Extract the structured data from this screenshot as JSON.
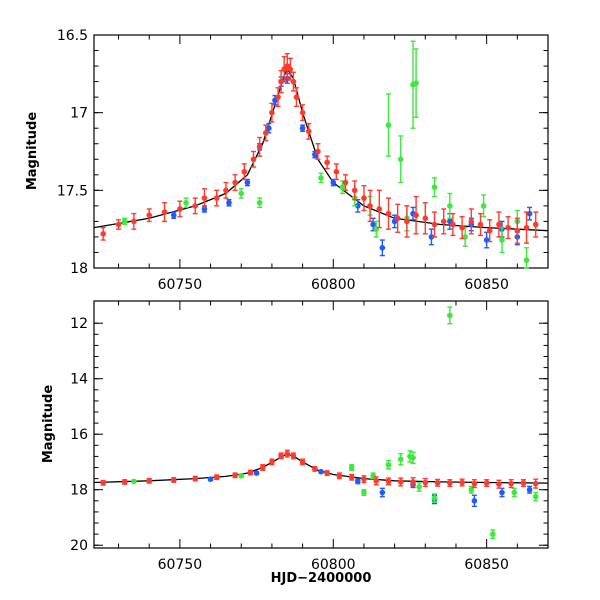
{
  "colors": {
    "blue": "#1f5bff",
    "green": "#3ee83e",
    "red": "#ff3b2f",
    "model": "#000000",
    "axes": "#000000"
  },
  "chart_data": [
    {
      "type": "scatter",
      "panel": "top",
      "xlabel": "",
      "ylabel": "Magnitude",
      "xlim": [
        60722,
        60870
      ],
      "ylim": [
        18.0,
        16.5
      ],
      "y_inverted": true,
      "xticks": [
        60750,
        60800,
        60850
      ],
      "xtick_labels": [
        "60750",
        "60800",
        "60850"
      ],
      "yticks": [
        16.5,
        17.0,
        17.5,
        18.0
      ],
      "ytick_labels": [
        "16.5",
        "17",
        "17.5",
        "18"
      ],
      "series": [
        {
          "color": "blue",
          "x": [
            60748,
            60758,
            60766,
            60772,
            60776,
            60779,
            60781,
            60783,
            60785,
            60790,
            60794,
            60800,
            60808,
            60813,
            60816,
            60820,
            60826,
            60832,
            60838,
            60845,
            60850,
            60855,
            60860,
            60864
          ],
          "y": [
            17.66,
            17.62,
            17.58,
            17.45,
            17.22,
            17.1,
            16.92,
            16.8,
            16.78,
            17.1,
            17.27,
            17.45,
            17.6,
            17.72,
            17.87,
            17.7,
            17.65,
            17.8,
            17.7,
            17.72,
            17.82,
            17.75,
            17.8,
            17.65
          ],
          "yerr": [
            0.02,
            0.02,
            0.02,
            0.02,
            0.02,
            0.03,
            0.03,
            0.03,
            0.03,
            0.02,
            0.02,
            0.02,
            0.04,
            0.04,
            0.05,
            0.04,
            0.04,
            0.05,
            0.05,
            0.04,
            0.05,
            0.05,
            0.05,
            0.04
          ]
        },
        {
          "color": "green",
          "x": [
            60732,
            60752,
            60770,
            60776,
            60796,
            60803,
            60807,
            60812,
            60814,
            60818,
            60822,
            60824,
            60826,
            60827,
            60833,
            60838,
            60843,
            60849,
            60855,
            60860,
            60863
          ],
          "y": [
            17.7,
            17.58,
            17.52,
            17.58,
            17.42,
            17.48,
            17.55,
            17.6,
            17.75,
            17.08,
            17.3,
            17.68,
            16.82,
            16.81,
            17.48,
            17.6,
            17.8,
            17.6,
            17.82,
            17.7,
            17.95
          ],
          "yerr": [
            0.02,
            0.03,
            0.03,
            0.03,
            0.03,
            0.04,
            0.05,
            0.06,
            0.05,
            0.2,
            0.15,
            0.08,
            0.28,
            0.22,
            0.06,
            0.08,
            0.06,
            0.07,
            0.08,
            0.07,
            0.08
          ]
        },
        {
          "color": "red",
          "x": [
            60725,
            60730,
            60735,
            60740,
            60745,
            60750,
            60755,
            60758,
            60762,
            60765,
            60768,
            60771,
            60774,
            60776,
            60778,
            60780,
            60782,
            60783,
            60784,
            60785,
            60786,
            60787,
            60788,
            60790,
            60792,
            60795,
            60798,
            60801,
            60804,
            60807,
            60810,
            60812,
            60815,
            60818,
            60821,
            60824,
            60827,
            60830,
            60833,
            60836,
            60839,
            60842,
            60845,
            60848,
            60851,
            60854,
            60857,
            60860,
            60863,
            60866
          ],
          "y": [
            17.78,
            17.72,
            17.7,
            17.66,
            17.64,
            17.62,
            17.6,
            17.55,
            17.55,
            17.5,
            17.45,
            17.38,
            17.3,
            17.22,
            17.13,
            17.0,
            16.9,
            16.8,
            16.72,
            16.7,
            16.72,
            16.8,
            16.9,
            17.0,
            17.12,
            17.25,
            17.32,
            17.38,
            17.45,
            17.5,
            17.55,
            17.6,
            17.62,
            17.65,
            17.68,
            17.7,
            17.66,
            17.68,
            17.72,
            17.7,
            17.72,
            17.74,
            17.7,
            17.72,
            17.76,
            17.72,
            17.74,
            17.76,
            17.74,
            17.72
          ],
          "yerr": [
            0.04,
            0.03,
            0.05,
            0.04,
            0.06,
            0.05,
            0.05,
            0.06,
            0.05,
            0.05,
            0.05,
            0.05,
            0.05,
            0.06,
            0.05,
            0.06,
            0.06,
            0.07,
            0.08,
            0.08,
            0.07,
            0.06,
            0.06,
            0.05,
            0.05,
            0.05,
            0.04,
            0.05,
            0.05,
            0.06,
            0.08,
            0.1,
            0.12,
            0.1,
            0.09,
            0.1,
            0.12,
            0.1,
            0.08,
            0.08,
            0.07,
            0.07,
            0.08,
            0.07,
            0.07,
            0.08,
            0.07,
            0.08,
            0.1,
            0.08
          ]
        },
        {
          "color": "model",
          "line": true,
          "x": [
            60722,
            60740,
            60755,
            60765,
            60772,
            60777,
            60781,
            60784,
            60785,
            60787,
            60790,
            60795,
            60800,
            60810,
            60820,
            60835,
            60850,
            60870
          ],
          "y": [
            17.74,
            17.68,
            17.6,
            17.52,
            17.4,
            17.2,
            16.95,
            16.76,
            16.72,
            16.78,
            17.0,
            17.3,
            17.45,
            17.6,
            17.68,
            17.72,
            17.74,
            17.76
          ]
        }
      ]
    },
    {
      "type": "scatter",
      "panel": "bottom",
      "xlabel": "HJD−2400000",
      "ylabel": "Magnitude",
      "xlim": [
        60722,
        60870
      ],
      "ylim": [
        20.1,
        11.2
      ],
      "y_inverted": true,
      "xticks": [
        60750,
        60800,
        60850
      ],
      "xtick_labels": [
        "60750",
        "60800",
        "60850"
      ],
      "yticks": [
        12,
        14,
        16,
        18,
        20
      ],
      "ytick_labels": [
        "12",
        "14",
        "16",
        "18",
        "20"
      ],
      "series": [
        {
          "color": "blue",
          "x": [
            60760,
            60775,
            60783,
            60796,
            60808,
            60816,
            60826,
            60833,
            60846,
            60855,
            60864
          ],
          "y": [
            17.62,
            17.4,
            16.78,
            17.35,
            17.7,
            18.1,
            17.82,
            18.35,
            18.4,
            18.1,
            18.0
          ],
          "yerr": [
            0.05,
            0.05,
            0.05,
            0.05,
            0.08,
            0.15,
            0.1,
            0.15,
            0.2,
            0.15,
            0.12
          ]
        },
        {
          "color": "green",
          "x": [
            60735,
            60770,
            60790,
            60806,
            60810,
            60813,
            60818,
            60822,
            60825,
            60826,
            60828,
            60833,
            60838,
            60845,
            60852,
            60859,
            60866
          ],
          "y": [
            17.7,
            17.5,
            17.0,
            17.2,
            18.1,
            17.5,
            17.1,
            16.9,
            16.8,
            16.85,
            17.9,
            18.3,
            11.72,
            18.0,
            19.6,
            18.1,
            18.25
          ],
          "yerr": [
            0.05,
            0.05,
            0.05,
            0.1,
            0.1,
            0.1,
            0.15,
            0.2,
            0.2,
            0.2,
            0.15,
            0.15,
            0.3,
            0.12,
            0.15,
            0.15,
            0.15
          ]
        },
        {
          "color": "red",
          "x": [
            60725,
            60732,
            60740,
            60748,
            60755,
            60762,
            60768,
            60773,
            60777,
            60780,
            60783,
            60785,
            60787,
            60790,
            60794,
            60798,
            60802,
            60806,
            60810,
            60814,
            60818,
            60822,
            60826,
            60830,
            60834,
            60838,
            60842,
            60846,
            60850,
            60854,
            60858,
            60862,
            60866
          ],
          "y": [
            17.75,
            17.72,
            17.68,
            17.65,
            17.6,
            17.55,
            17.48,
            17.38,
            17.2,
            17.0,
            16.78,
            16.7,
            16.78,
            17.0,
            17.25,
            17.4,
            17.5,
            17.55,
            17.62,
            17.68,
            17.7,
            17.72,
            17.72,
            17.74,
            17.75,
            17.76,
            17.74,
            17.78,
            17.76,
            17.8,
            17.78,
            17.76,
            17.78
          ],
          "yerr": [
            0.08,
            0.08,
            0.08,
            0.08,
            0.08,
            0.08,
            0.08,
            0.08,
            0.1,
            0.1,
            0.1,
            0.12,
            0.1,
            0.1,
            0.08,
            0.08,
            0.1,
            0.1,
            0.12,
            0.14,
            0.12,
            0.14,
            0.15,
            0.14,
            0.12,
            0.12,
            0.12,
            0.14,
            0.12,
            0.14,
            0.14,
            0.12,
            0.16
          ]
        },
        {
          "color": "model",
          "line": true,
          "x": [
            60722,
            60740,
            60755,
            60765,
            60772,
            60777,
            60781,
            60784,
            60785,
            60787,
            60790,
            60795,
            60800,
            60810,
            60820,
            60835,
            60850,
            60870
          ],
          "y": [
            17.74,
            17.68,
            17.6,
            17.52,
            17.4,
            17.2,
            16.95,
            16.76,
            16.72,
            16.78,
            17.0,
            17.3,
            17.45,
            17.6,
            17.68,
            17.72,
            17.74,
            17.76
          ]
        }
      ]
    }
  ]
}
